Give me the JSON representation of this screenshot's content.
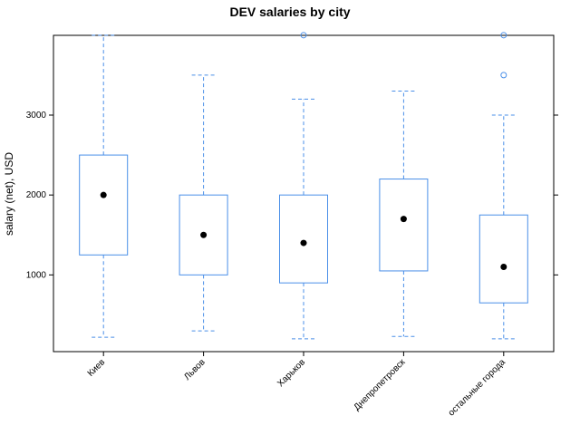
{
  "chart_data": {
    "type": "box",
    "title": "DEV salaries by city",
    "ylabel": "salary (net), USD",
    "xlabel": "",
    "ylim": [
      0,
      4000
    ],
    "yticks": [
      1000,
      2000,
      3000
    ],
    "ytick_labels": [
      "1000",
      "2000",
      "3000"
    ],
    "categories": [
      "Киев",
      "Львов",
      "Харьков",
      "Днепропетровск",
      "остальные города"
    ],
    "boxes": [
      {
        "category": "Киев",
        "whisker_low": 220,
        "q1": 1250,
        "median": 2000,
        "q3": 2500,
        "whisker_high": 4000,
        "outliers": []
      },
      {
        "category": "Львов",
        "whisker_low": 300,
        "q1": 1000,
        "median": 1500,
        "q3": 2000,
        "whisker_high": 3500,
        "outliers": []
      },
      {
        "category": "Харьков",
        "whisker_low": 200,
        "q1": 900,
        "median": 1400,
        "q3": 2000,
        "whisker_high": 3200,
        "outliers": [
          4000
        ]
      },
      {
        "category": "Днепропетровск",
        "whisker_low": 230,
        "q1": 1050,
        "median": 1700,
        "q3": 2200,
        "whisker_high": 3300,
        "outliers": []
      },
      {
        "category": "остальные города",
        "whisker_low": 200,
        "q1": 650,
        "median": 1100,
        "q3": 1750,
        "whisker_high": 3000,
        "outliers": [
          3500,
          4000
        ]
      }
    ],
    "colors": {
      "box": "#4a8fe8",
      "median_dot": "#000000",
      "frame": "#000000"
    },
    "grid": false,
    "legend": "none"
  }
}
